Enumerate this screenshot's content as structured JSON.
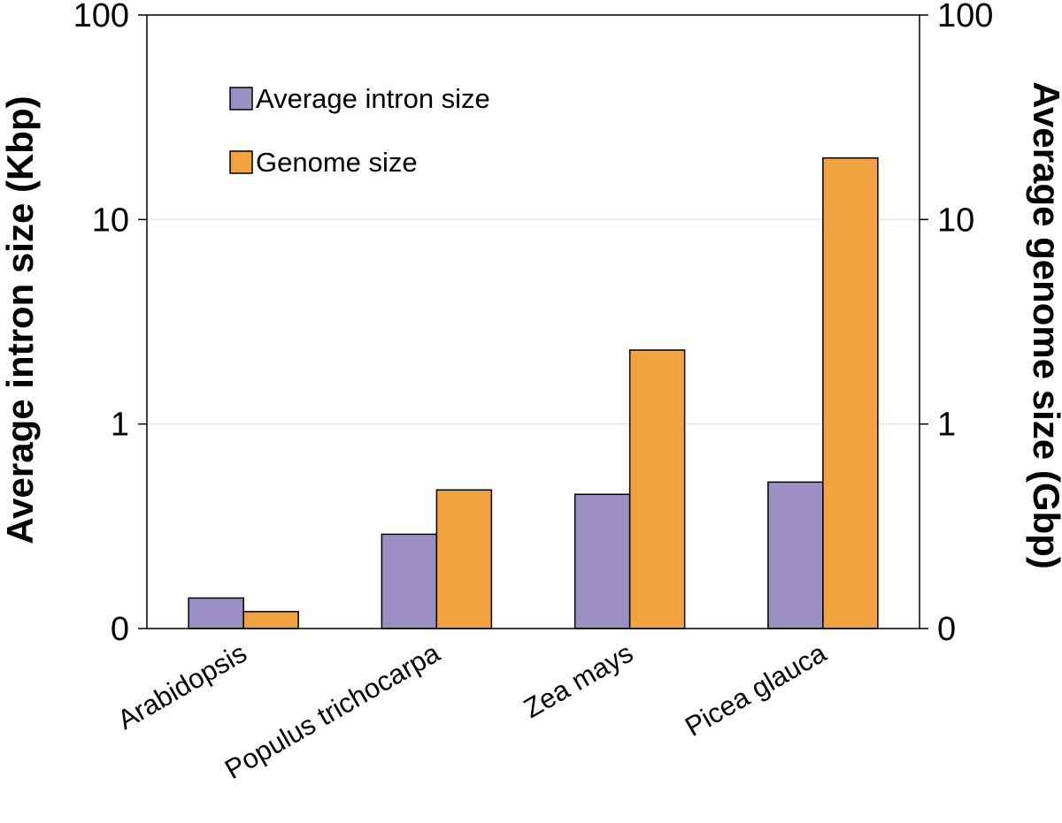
{
  "chart_data": {
    "type": "bar",
    "scale": "log",
    "categories": [
      "Arabidopsis",
      "Populus trichocarpa",
      "Zea mays",
      "Picea glauca"
    ],
    "series": [
      {
        "name": "Average intron size",
        "axis": "left",
        "color": "#9b8fc4",
        "values": [
          0.141,
          0.289,
          0.453,
          0.52
        ]
      },
      {
        "name": "Genome size",
        "axis": "right",
        "color": "#f0a33e",
        "values": [
          0.121,
          0.476,
          2.3,
          20
        ]
      }
    ],
    "ylabel_left": "Average intron size (Kbp)",
    "ylabel_right": "Average genome size (Gbp)",
    "y_ticks": [
      {
        "value": 0.1,
        "label": "0"
      },
      {
        "value": 1,
        "label": "1"
      },
      {
        "value": 10,
        "label": "10"
      },
      {
        "value": 100,
        "label": "100"
      }
    ],
    "ylim": [
      0.1,
      100
    ],
    "grid": true,
    "legend": "top-left"
  }
}
